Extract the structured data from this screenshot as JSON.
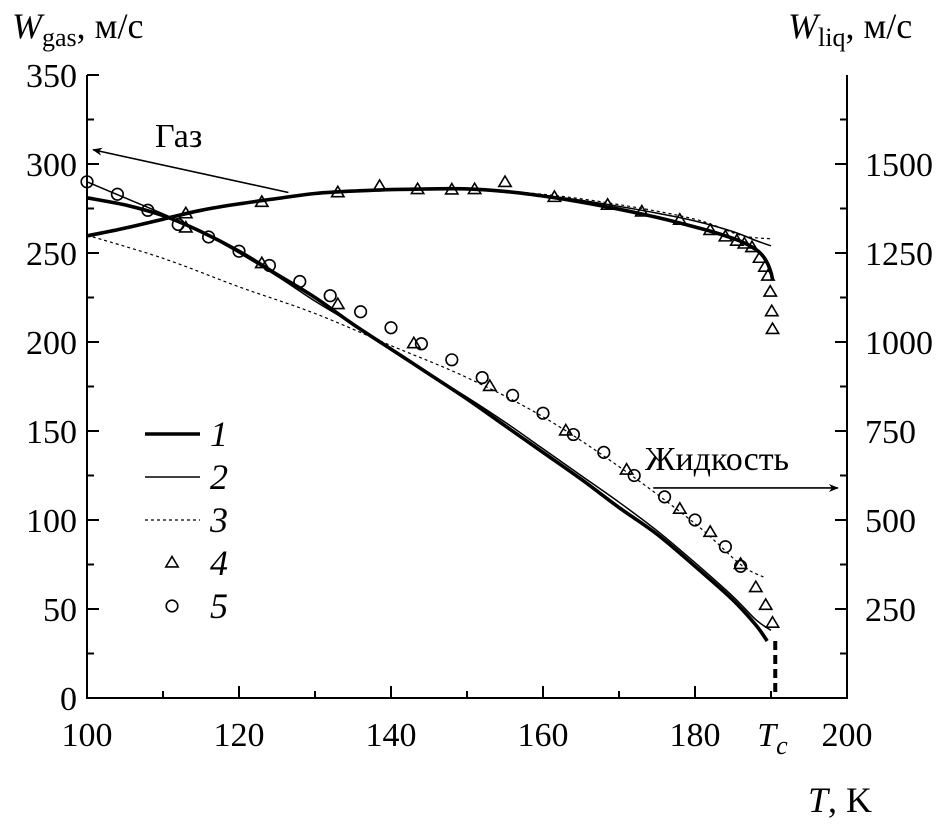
{
  "chart_data": {
    "type": "line",
    "xlabel": {
      "symbol": "T",
      "unit": ", K"
    },
    "ylabel_left": {
      "symbol": "W",
      "sub": "gas",
      "unit": ", м/с"
    },
    "ylabel_right": {
      "symbol": "W",
      "sub": "liq",
      "unit": ", м/с"
    },
    "xlim": [
      100,
      200
    ],
    "ylim_left": [
      0,
      350
    ],
    "ylim_right": [
      0,
      1750
    ],
    "x_ticks": [
      "100",
      "120",
      "140",
      "160",
      "180",
      "200"
    ],
    "x_tick_values": [
      100,
      120,
      140,
      160,
      180,
      200
    ],
    "critical_tick": {
      "label": "T",
      "sub": "c",
      "value": 190.56
    },
    "y_left_ticks": [
      "0",
      "50",
      "100",
      "150",
      "200",
      "250",
      "300",
      "350"
    ],
    "y_left_tick_values": [
      0,
      50,
      100,
      150,
      200,
      250,
      300,
      350
    ],
    "y_right_ticks": [
      "250",
      "500",
      "750",
      "1000",
      "1250",
      "1500"
    ],
    "y_right_tick_values": [
      250,
      500,
      750,
      1000,
      1250,
      1500
    ],
    "annotations": [
      {
        "text": "Газ",
        "arrow_from": [
          126.5,
          284
        ],
        "arrow_to": [
          100.8,
          308
        ]
      },
      {
        "text": "Жидкость",
        "arrow_from": [
          174.5,
          590
        ],
        "arrow_to": [
          198.8,
          590
        ]
      }
    ],
    "legend": {
      "placement": "center-left",
      "entries": [
        {
          "label": "1",
          "style": "thick"
        },
        {
          "label": "2",
          "style": "thin"
        },
        {
          "label": "3",
          "style": "dotted"
        },
        {
          "label": "4",
          "style": "triangle"
        },
        {
          "label": "5",
          "style": "circle"
        }
      ]
    },
    "series": [
      {
        "label": "1",
        "style": "thick",
        "axis": "left",
        "x": [
          100,
          105,
          110,
          115,
          120,
          125,
          130,
          135,
          140,
          145,
          150,
          155,
          160,
          165,
          170,
          175,
          180,
          185,
          188,
          189.5,
          190.56
        ],
        "y": [
          281,
          277,
          271,
          262,
          251,
          238,
          225,
          210,
          196,
          182,
          168,
          153,
          138,
          123,
          107,
          92,
          74,
          55,
          41,
          32,
          0
        ]
      },
      {
        "label": "1",
        "style": "thick",
        "axis": "right",
        "x": [
          100,
          105,
          110,
          115,
          120,
          125,
          130,
          135,
          140,
          145,
          150,
          155,
          160,
          165,
          170,
          175,
          180,
          183,
          186,
          188,
          189,
          189.6,
          190,
          190.2
        ],
        "y": [
          1298,
          1320,
          1345,
          1370,
          1388,
          1403,
          1417,
          1424,
          1428,
          1430,
          1430,
          1423,
          1410,
          1393,
          1373,
          1350,
          1323,
          1305,
          1283,
          1260,
          1240,
          1218,
          1195,
          1175
        ]
      },
      {
        "label": "2",
        "style": "thin",
        "axis": "left",
        "x": [
          100,
          105,
          110,
          115,
          120,
          125,
          130,
          135,
          140,
          145,
          150,
          155,
          160,
          165,
          170,
          175,
          180,
          185,
          188,
          190
        ],
        "y": [
          290,
          281,
          272,
          262,
          250,
          237,
          223,
          210,
          196,
          182,
          169,
          155,
          140,
          125,
          110,
          94,
          76,
          57,
          44,
          38
        ]
      },
      {
        "label": "2",
        "style": "thin",
        "axis": "right",
        "x": [
          100,
          105,
          110,
          115,
          120,
          125,
          130,
          135,
          140,
          145,
          150,
          155,
          160,
          165,
          170,
          175,
          180,
          185,
          188,
          190
        ],
        "y": [
          1298,
          1320,
          1346,
          1371,
          1389,
          1404,
          1417,
          1424,
          1428,
          1430,
          1430,
          1423,
          1412,
          1398,
          1381,
          1362,
          1340,
          1310,
          1285,
          1270
        ]
      },
      {
        "label": "3",
        "style": "dotted",
        "axis": "left",
        "x": [
          100,
          110,
          120,
          130,
          140,
          150,
          160,
          170,
          180,
          186,
          189
        ],
        "y": [
          260,
          247,
          231,
          216,
          198,
          180,
          158,
          130,
          98,
          75,
          68
        ]
      },
      {
        "label": "3",
        "style": "dotted",
        "axis": "right",
        "x": [
          120,
          125,
          130,
          135,
          140,
          150,
          160,
          170,
          180,
          186,
          190
        ],
        "y": [
          1389,
          1404,
          1418,
          1425,
          1428,
          1429,
          1415,
          1386,
          1345,
          1300,
          1290
        ]
      },
      {
        "label": "4",
        "style": "triangle",
        "axis": "left",
        "x": [
          113,
          123,
          133,
          143,
          153,
          163,
          171,
          178,
          182,
          186,
          188,
          189.3,
          190.2
        ],
        "y": [
          264,
          244,
          221,
          199,
          175,
          150,
          128,
          106,
          93,
          75,
          62,
          52,
          42
        ]
      },
      {
        "label": "4",
        "style": "triangle",
        "axis": "right",
        "x": [
          113,
          123,
          133,
          138.5,
          143.5,
          148,
          151,
          155,
          161.5,
          168.5,
          173,
          178,
          182,
          184,
          185.5,
          186.5,
          187.5,
          188.5,
          189.2,
          189.6,
          189.9,
          190.1,
          190.2
        ],
        "y": [
          1360,
          1392,
          1419,
          1437,
          1428,
          1427,
          1428,
          1448,
          1406,
          1384,
          1365,
          1342,
          1313,
          1295,
          1283,
          1275,
          1265,
          1235,
          1210,
          1185,
          1140,
          1085,
          1035
        ]
      },
      {
        "label": "5",
        "style": "circle",
        "axis": "left",
        "x": [
          100,
          104,
          108,
          112,
          116,
          120,
          124,
          128,
          132,
          136,
          140,
          144,
          148,
          152,
          156,
          160,
          164,
          168,
          172,
          176,
          180,
          184,
          186
        ],
        "y": [
          290,
          283,
          274,
          266,
          259,
          251,
          243,
          234,
          226,
          217,
          208,
          199,
          190,
          180,
          170,
          160,
          148,
          138,
          125,
          113,
          100,
          85,
          74
        ]
      }
    ]
  }
}
